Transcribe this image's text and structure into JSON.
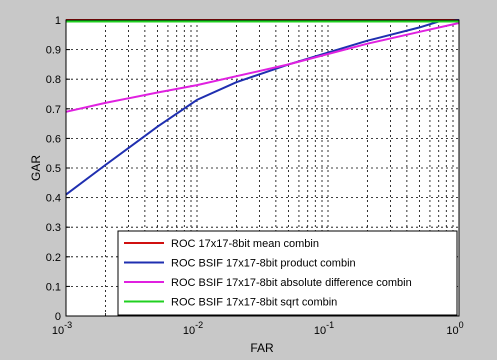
{
  "chart_data": {
    "type": "line",
    "xlabel": "FAR",
    "ylabel": "GAR",
    "xscale": "log",
    "xlim": [
      0.001,
      1
    ],
    "ylim": [
      0,
      1
    ],
    "grid": true,
    "legend_position": "bottom-right",
    "x_tick_labels": [
      {
        "base": "10",
        "exp": "-3"
      },
      {
        "base": "10",
        "exp": "-2"
      },
      {
        "base": "10",
        "exp": "-1"
      },
      {
        "base": "10",
        "exp": "0"
      }
    ],
    "y_tick_labels": [
      "0",
      "0.1",
      "0.2",
      "0.3",
      "0.4",
      "0.5",
      "0.6",
      "0.7",
      "0.8",
      "0.9",
      "1"
    ],
    "series": [
      {
        "name": "ROC 17x17-8bit mean combin",
        "color": "#d01010",
        "points": [
          [
            0.001,
            1.0
          ],
          [
            0.0025,
            1.0
          ],
          [
            0.01,
            1.0
          ],
          [
            0.1,
            1.0
          ],
          [
            1.0,
            1.0
          ]
        ]
      },
      {
        "name": "ROC BSIF 17x17-8bit product combin",
        "color": "#1f2fb0",
        "points": [
          [
            0.001,
            0.41
          ],
          [
            0.002,
            0.51
          ],
          [
            0.005,
            0.64
          ],
          [
            0.01,
            0.73
          ],
          [
            0.02,
            0.79
          ],
          [
            0.05,
            0.85
          ],
          [
            0.1,
            0.89
          ],
          [
            0.2,
            0.93
          ],
          [
            0.5,
            0.975
          ],
          [
            0.7,
            0.995
          ],
          [
            1.0,
            1.0
          ]
        ]
      },
      {
        "name": "ROC BSIF 17x17-8bit absolute difference combin",
        "color": "#e020e0",
        "points": [
          [
            0.001,
            0.69
          ],
          [
            0.002,
            0.72
          ],
          [
            0.005,
            0.755
          ],
          [
            0.01,
            0.78
          ],
          [
            0.02,
            0.81
          ],
          [
            0.05,
            0.85
          ],
          [
            0.1,
            0.885
          ],
          [
            0.2,
            0.92
          ],
          [
            0.5,
            0.96
          ],
          [
            1.0,
            0.99
          ]
        ]
      },
      {
        "name": "ROC BSIF 17x17-8bit sqrt combin",
        "color": "#20d020",
        "points": [
          [
            0.001,
            0.995
          ],
          [
            0.01,
            0.995
          ],
          [
            0.1,
            0.995
          ],
          [
            1.0,
            0.995
          ]
        ]
      }
    ]
  }
}
